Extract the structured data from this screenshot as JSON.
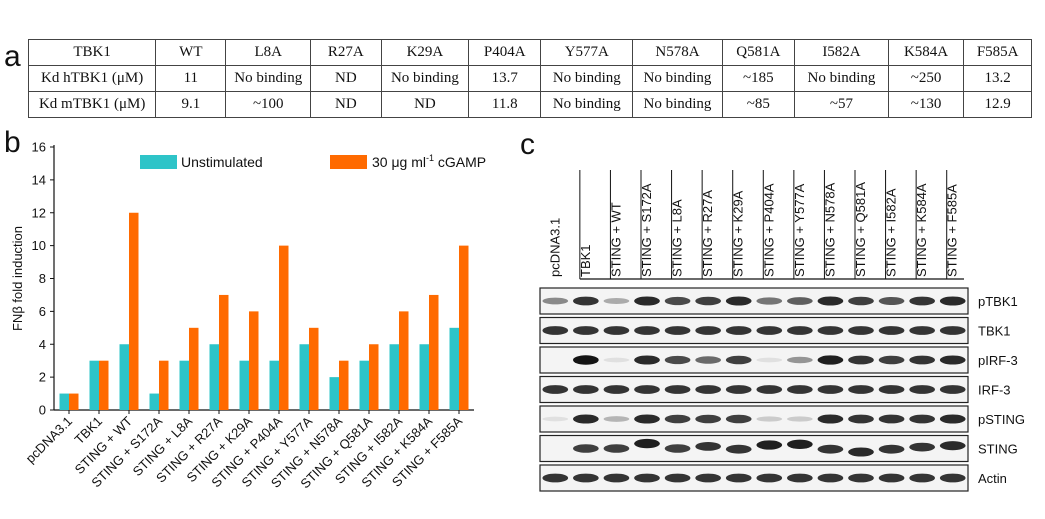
{
  "panel_labels": {
    "a": "a",
    "b": "b",
    "c": "c"
  },
  "table": {
    "header": [
      "TBK1",
      "WT",
      "L8A",
      "R27A",
      "K29A",
      "P404A",
      "Y577A",
      "N578A",
      "Q581A",
      "I582A",
      "K584A",
      "F585A"
    ],
    "rows": [
      [
        "Kd hTBK1 (μM)",
        "11",
        "No binding",
        "ND",
        "No binding",
        "13.7",
        "No binding",
        "No binding",
        "~185",
        "No binding",
        "~250",
        "13.2"
      ],
      [
        "Kd mTBK1 (μM)",
        "9.1",
        "~100",
        "ND",
        "ND",
        "11.8",
        "No binding",
        "No binding",
        "~85",
        "~57",
        "~130",
        "12.9"
      ]
    ]
  },
  "chart_data": {
    "type": "bar",
    "categories": [
      "pcDNA3.1",
      "TBK1",
      "STING + WT",
      "STING + S172A",
      "STING + L8A",
      "STING + R27A",
      "STING + K29A",
      "STING + P404A",
      "STING + Y577A",
      "STING + N578A",
      "STING + Q581A",
      "STING + I582A",
      "STING + K584A",
      "STING + F585A"
    ],
    "series": [
      {
        "name": "Unstimulated",
        "values": [
          1,
          3,
          4,
          1,
          3,
          4,
          3,
          3,
          4,
          2,
          3,
          4,
          4,
          5
        ],
        "color": "#2ec4c8"
      },
      {
        "name": "30 μg ml",
        "name_sup": "-1",
        "name_suffix": " cGAMP",
        "values": [
          1,
          3,
          12,
          3,
          5,
          7,
          6,
          10,
          5,
          3,
          4,
          6,
          7,
          10
        ],
        "color": "#ff6a00"
      }
    ],
    "ylabel": "FNβ fold induction",
    "xlabel": "",
    "ylim": [
      0,
      16
    ],
    "yticks": [
      0,
      2,
      4,
      6,
      8,
      10,
      12,
      14,
      16
    ],
    "grid": false,
    "legend_position": "top"
  },
  "blot": {
    "lanes": [
      "pcDNA3.1",
      "TBK1",
      "STING + WT",
      "STING + S172A",
      "STING + L8A",
      "STING + R27A",
      "STING + K29A",
      "STING + P404A",
      "STING + Y577A",
      "STING + N578A",
      "STING + Q581A",
      "STING + I582A",
      "STING + K584A",
      "STING + F585A"
    ],
    "rows": [
      {
        "label": "pTBK1",
        "intensity": [
          0.45,
          0.85,
          0.3,
          0.9,
          0.75,
          0.8,
          0.9,
          0.55,
          0.65,
          0.9,
          0.8,
          0.7,
          0.85,
          0.9
        ]
      },
      {
        "label": "TBK1",
        "intensity": [
          0.85,
          0.85,
          0.85,
          0.85,
          0.85,
          0.85,
          0.85,
          0.85,
          0.85,
          0.85,
          0.85,
          0.85,
          0.85,
          0.85
        ]
      },
      {
        "label": "pIRF-3",
        "intensity": [
          0.0,
          1.0,
          0.05,
          0.9,
          0.75,
          0.6,
          0.8,
          0.05,
          0.4,
          0.95,
          0.85,
          0.8,
          0.85,
          0.9
        ]
      },
      {
        "label": "IRF-3",
        "intensity": [
          0.85,
          0.85,
          0.85,
          0.85,
          0.85,
          0.85,
          0.85,
          0.85,
          0.85,
          0.85,
          0.85,
          0.85,
          0.85,
          0.85
        ]
      },
      {
        "label": "pSTING",
        "intensity": [
          0.05,
          0.9,
          0.25,
          0.9,
          0.8,
          0.8,
          0.8,
          0.15,
          0.15,
          0.9,
          0.85,
          0.85,
          0.85,
          0.9
        ]
      },
      {
        "label": "STING",
        "intensity": [
          0.0,
          0.8,
          0.8,
          0.95,
          0.8,
          0.85,
          0.85,
          0.95,
          0.95,
          0.85,
          0.9,
          0.85,
          0.85,
          0.9
        ]
      },
      {
        "label": "Actin",
        "intensity": [
          0.85,
          0.85,
          0.85,
          0.85,
          0.85,
          0.85,
          0.85,
          0.85,
          0.85,
          0.85,
          0.85,
          0.85,
          0.85,
          0.85
        ]
      }
    ]
  }
}
